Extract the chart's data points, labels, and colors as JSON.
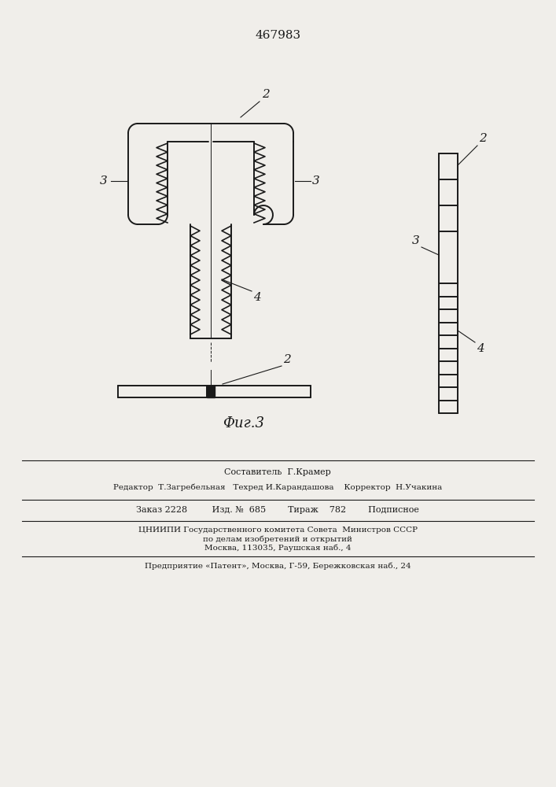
{
  "title": "467983",
  "fig_caption": "Фиг.3",
  "background_color": "#f0eeea",
  "line_color": "#1a1a1a",
  "footer_line1": "Составитель  Г.Крамер",
  "footer_line2": "Редактор  Т.Загребельная   Техред И.Карандашова    Корректор  Н.Учакина",
  "footer_line3": "Заказ 2228         Изд. №  685        Тираж    782        Подписное",
  "footer_line4": "ЦНИИПИ Государственного комитета Совета  Министров СССР",
  "footer_line5": "по делам изобретений и открытий",
  "footer_line6": "Москва, 113035, Раушская наб., 4",
  "footer_line7": "Предприятие «Патент», Москва, Г-59, Бережковская наб., 24"
}
